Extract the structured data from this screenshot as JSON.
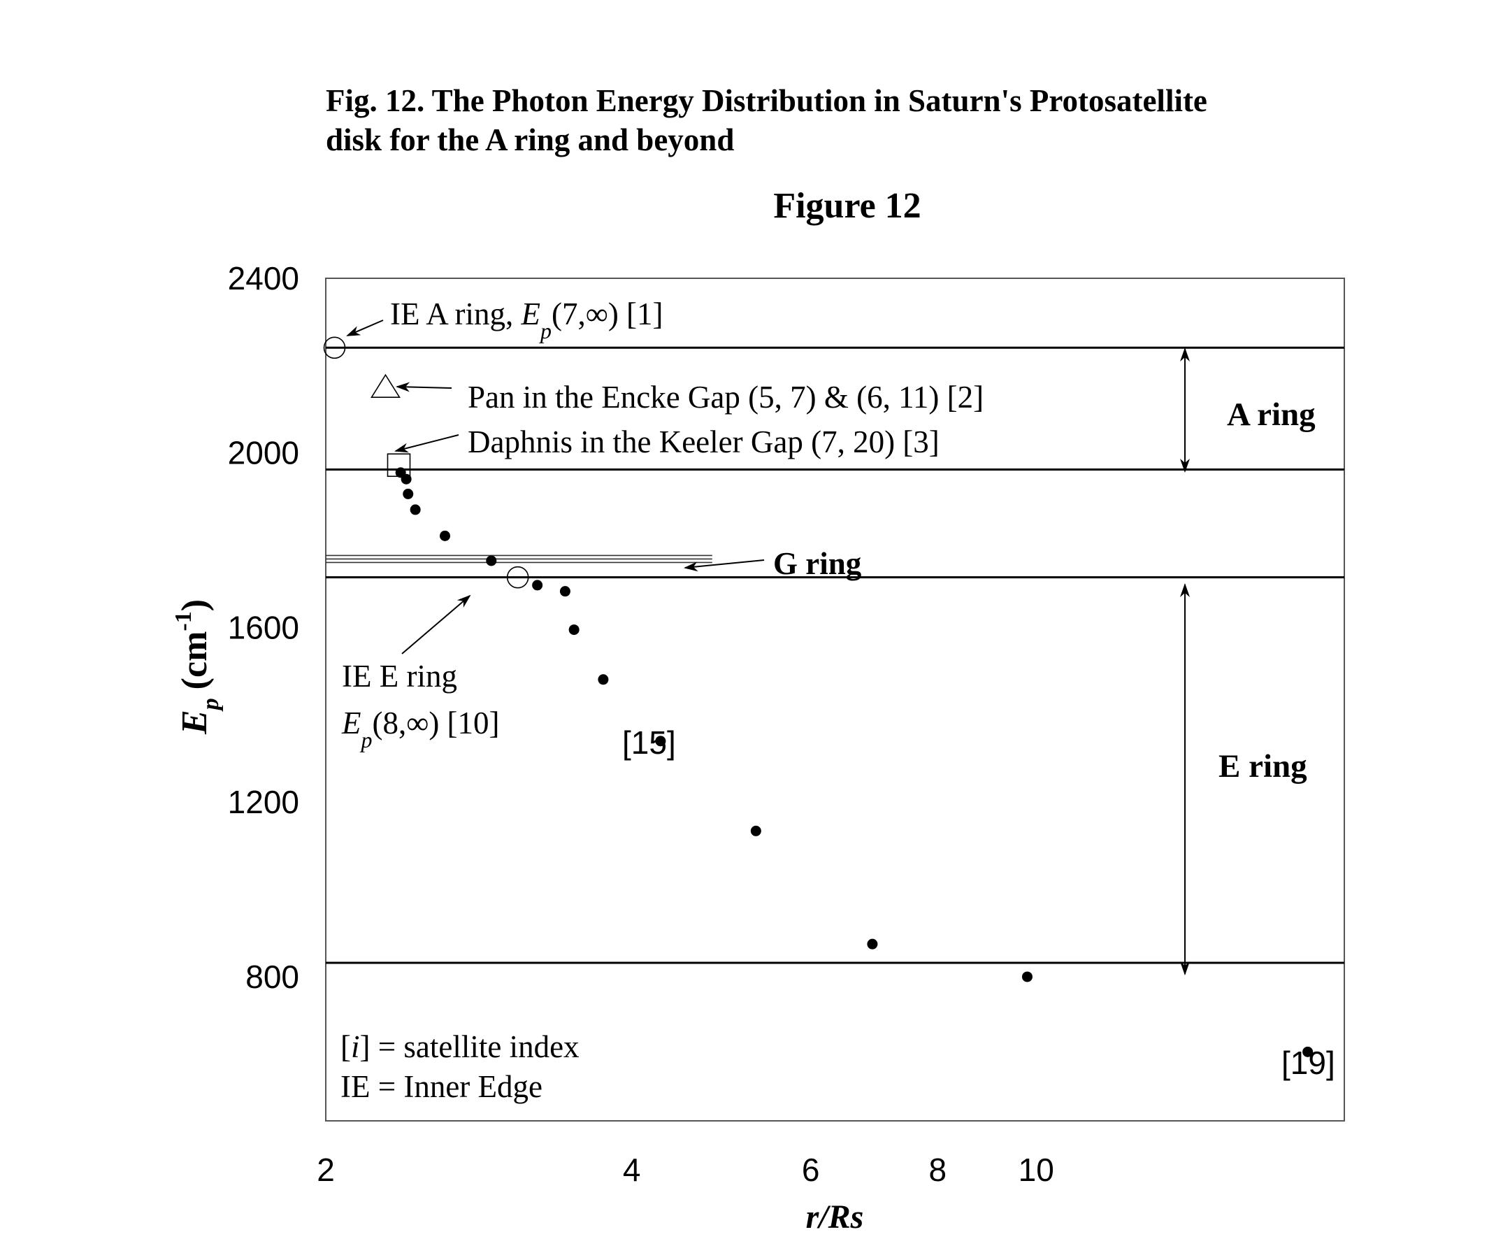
{
  "caption": {
    "line1": "Fig. 12. The Photon Energy Distribution in Saturn's Protosatellite",
    "line2": "disk for the A ring and beyond"
  },
  "chart_data": {
    "type": "scatter",
    "title": "Figure 12",
    "xlabel": "r/Rs",
    "ylabel_main": "E",
    "ylabel_sub": "p",
    "ylabel_unit_pre": "(cm",
    "ylabel_unit_sup": "-1",
    "ylabel_unit_post": ")",
    "x_scale": "log",
    "xlim": [
      2,
      20.1
    ],
    "ylim": [
      470,
      2400
    ],
    "x_ticks": [
      {
        "value": 2,
        "label": "2"
      },
      {
        "value": 4,
        "label": "4"
      },
      {
        "value": 6,
        "label": "6"
      },
      {
        "value": 8,
        "label": "8"
      },
      {
        "value": 10,
        "label": "10"
      }
    ],
    "y_ticks": [
      {
        "value": 800,
        "label": "800"
      },
      {
        "value": 1200,
        "label": "1200"
      },
      {
        "value": 1600,
        "label": "1600"
      },
      {
        "value": 2000,
        "label": "2000"
      },
      {
        "value": 2400,
        "label": "2400"
      }
    ],
    "grid": false,
    "reference_lines": [
      {
        "y": 2241
      },
      {
        "y": 1962
      },
      {
        "y": 1715
      },
      {
        "y": 832
      }
    ],
    "g_ring_lines": [
      {
        "y": 1765,
        "x0": 2.0,
        "x1": 4.8
      },
      {
        "y": 1757,
        "x0": 2.0,
        "x1": 4.8
      },
      {
        "y": 1749,
        "x0": 2.0,
        "x1": 4.8
      }
    ],
    "series": [
      {
        "marker": "filled-circle",
        "points": [
          {
            "x": 2.37,
            "y": 1955
          },
          {
            "x": 2.4,
            "y": 1940
          },
          {
            "x": 2.41,
            "y": 1906
          },
          {
            "x": 2.45,
            "y": 1870
          },
          {
            "x": 2.62,
            "y": 1810
          },
          {
            "x": 2.91,
            "y": 1753
          },
          {
            "x": 3.23,
            "y": 1697
          },
          {
            "x": 3.44,
            "y": 1683
          },
          {
            "x": 3.51,
            "y": 1595
          },
          {
            "x": 3.75,
            "y": 1481
          },
          {
            "x": 4.27,
            "y": 1340
          },
          {
            "x": 5.3,
            "y": 1134
          },
          {
            "x": 6.9,
            "y": 875
          },
          {
            "x": 9.8,
            "y": 800
          },
          {
            "x": 18.5,
            "y": 628
          }
        ]
      },
      {
        "marker": "open-circle",
        "points": [
          {
            "x": 2.04,
            "y": 2241
          },
          {
            "x": 3.09,
            "y": 1715
          }
        ]
      },
      {
        "marker": "open-triangle",
        "points": [
          {
            "x": 2.29,
            "y": 2153
          }
        ]
      },
      {
        "marker": "open-square",
        "points": [
          {
            "x": 2.36,
            "y": 1972
          }
        ]
      }
    ],
    "annotations": {
      "ie_a_ring_pre": "IE A ring, ",
      "ie_a_ring_E": "E",
      "ie_a_ring_p": "p",
      "ie_a_ring_post": "(7,∞) [1]",
      "pan": "Pan in the Encke Gap (5, 7) & (6, 11) [2]",
      "daphnis": "Daphnis in the Keeler Gap (7, 20) [3]",
      "g_ring": "G ring",
      "a_ring": "A ring",
      "e_ring": "E ring",
      "ie_e_ring_line1": "IE E ring",
      "ie_e_ring_E": "E",
      "ie_e_ring_p": "p",
      "ie_e_ring_post": "(8,∞) [10]",
      "label_15": "[15]",
      "label_19": "[19]",
      "legend_i_open": "[",
      "legend_i": "i",
      "legend_i_close": "] = satellite index",
      "legend_ie": "IE = Inner Edge"
    }
  }
}
